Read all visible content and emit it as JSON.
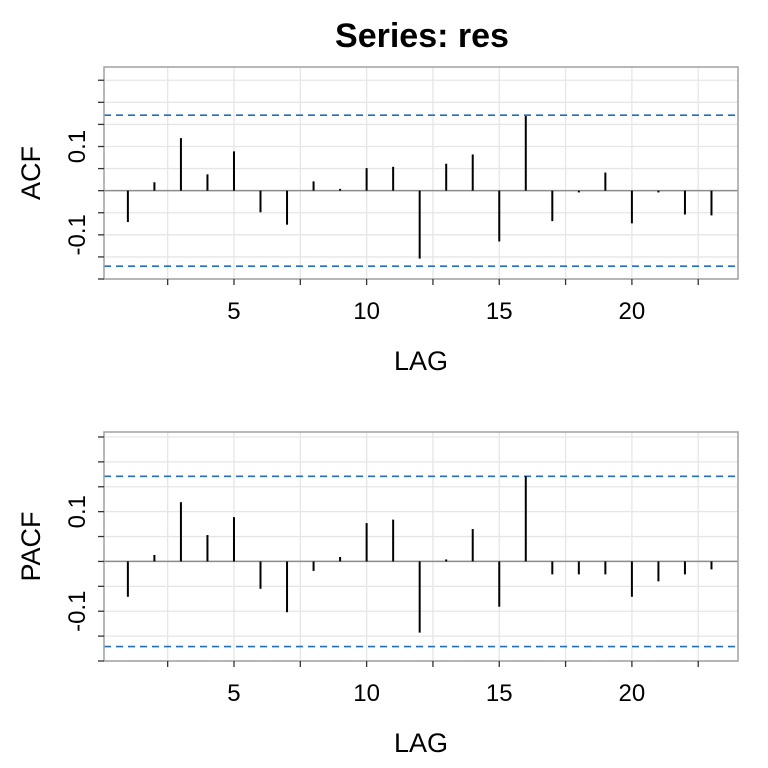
{
  "title": "Series:  res",
  "colors": {
    "ci_line": "#1f6fc4",
    "grid": "#e6e6e6",
    "frame": "#a0a0a0",
    "bar": "#000000",
    "zero": "#8c8c8c"
  },
  "chart_data": [
    {
      "type": "bar",
      "panel": "acf",
      "ylabel": "ACF",
      "xlabel": "LAG",
      "x": [
        1,
        2,
        3,
        4,
        5,
        6,
        7,
        8,
        9,
        10,
        11,
        12,
        13,
        14,
        15,
        16,
        17,
        18,
        19,
        20,
        21,
        22,
        23
      ],
      "values": [
        -0.071,
        0.019,
        0.119,
        0.037,
        0.089,
        -0.049,
        -0.077,
        0.021,
        0.004,
        0.051,
        0.054,
        -0.154,
        0.061,
        0.082,
        -0.115,
        0.169,
        -0.069,
        -0.004,
        0.041,
        -0.074,
        -0.004,
        -0.054,
        -0.056
      ],
      "ci": [
        -0.171,
        0.171
      ],
      "xlim": [
        0.1,
        24
      ],
      "ylim": [
        -0.2,
        0.28
      ],
      "xticks": [
        5,
        10,
        15,
        20
      ],
      "xtick_labels": [
        "5",
        "10",
        "15",
        "20"
      ],
      "yticks": [
        0.1,
        -0.1
      ],
      "ytick_labels": [
        "0.1",
        "-0.1"
      ],
      "grid": true
    },
    {
      "type": "bar",
      "panel": "pacf",
      "ylabel": "PACF",
      "xlabel": "LAG",
      "x": [
        1,
        2,
        3,
        4,
        5,
        6,
        7,
        8,
        9,
        10,
        11,
        12,
        13,
        14,
        15,
        16,
        17,
        18,
        19,
        20,
        21,
        22,
        23
      ],
      "values": [
        -0.071,
        0.013,
        0.119,
        0.053,
        0.089,
        -0.055,
        -0.102,
        -0.019,
        0.009,
        0.077,
        0.084,
        -0.143,
        0.004,
        0.065,
        -0.091,
        0.171,
        -0.026,
        -0.026,
        -0.026,
        -0.071,
        -0.04,
        -0.026,
        -0.016
      ],
      "ci": [
        -0.171,
        0.171
      ],
      "xlim": [
        0.1,
        24
      ],
      "ylim": [
        -0.2,
        0.26
      ],
      "xticks": [
        5,
        10,
        15,
        20
      ],
      "xtick_labels": [
        "5",
        "10",
        "15",
        "20"
      ],
      "yticks": [
        0.1,
        -0.1
      ],
      "ytick_labels": [
        "0.1",
        "-0.1"
      ],
      "grid": true
    }
  ]
}
